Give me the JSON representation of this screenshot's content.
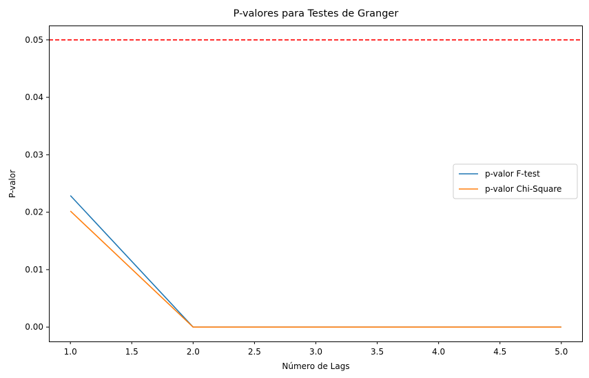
{
  "chart_data": {
    "type": "line",
    "title": "P-valores para Testes de Granger",
    "xlabel": "Número de Lags",
    "ylabel": "P-valor",
    "xlim": [
      0.825,
      5.175
    ],
    "ylim": [
      -0.0025,
      0.0525
    ],
    "x_ticks": [
      1.0,
      1.5,
      2.0,
      2.5,
      3.0,
      3.5,
      4.0,
      4.5,
      5.0
    ],
    "x_tick_labels": [
      "1.0",
      "1.5",
      "2.0",
      "2.5",
      "3.0",
      "3.5",
      "4.0",
      "4.5",
      "5.0"
    ],
    "y_ticks": [
      0.0,
      0.01,
      0.02,
      0.03,
      0.04,
      0.05
    ],
    "y_tick_labels": [
      "0.00",
      "0.01",
      "0.02",
      "0.03",
      "0.04",
      "0.05"
    ],
    "x": [
      1,
      2,
      3,
      4,
      5
    ],
    "series": [
      {
        "name": "p-valor F-test",
        "values": [
          0.0229,
          0.0,
          0.0,
          0.0,
          0.0
        ],
        "color": "#1f77b4"
      },
      {
        "name": "p-valor Chi-Square",
        "values": [
          0.0202,
          0.0,
          0.0,
          0.0,
          0.0
        ],
        "color": "#ff7f0e"
      }
    ],
    "reference_line": {
      "y": 0.05,
      "color": "#ff0000",
      "style": "dashed"
    },
    "grid": false,
    "legend_position": "center-right"
  }
}
